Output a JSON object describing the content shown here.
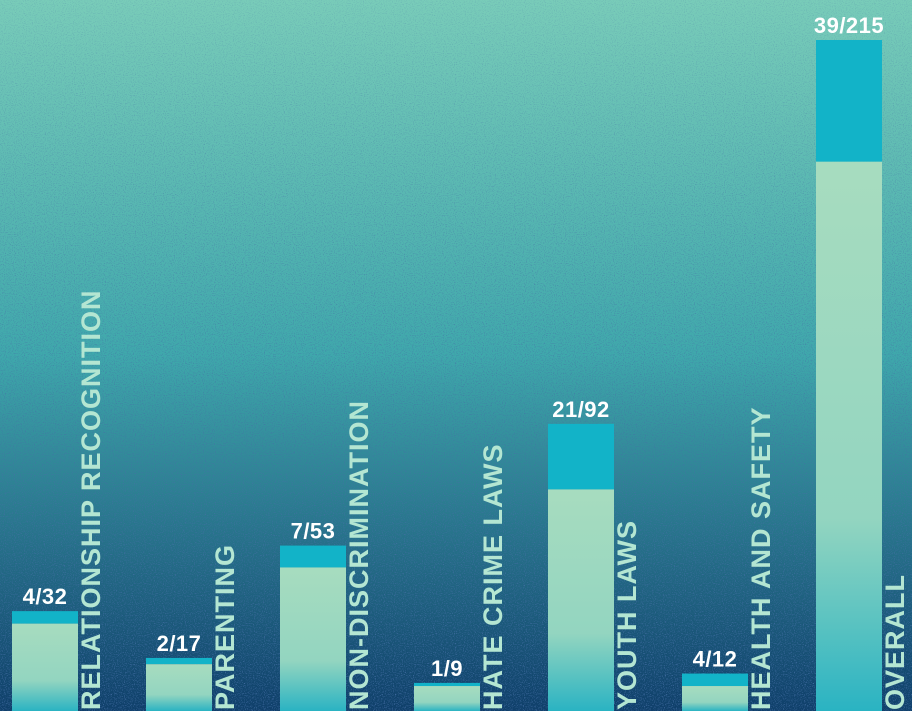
{
  "chart_data": {
    "type": "bar",
    "stacked": true,
    "categories": [
      "RELATIONSHIP RECOGNITION",
      "PARENTING",
      "NON-DISCRIMINATION",
      "HATE CRIME LAWS",
      "YOUTH LAWS",
      "HEALTH AND SAFETY",
      "OVERALL"
    ],
    "labels": [
      "4/32",
      "2/17",
      "7/53",
      "1/9",
      "21/92",
      "4/12",
      "39/215"
    ],
    "series": [
      {
        "values": [
          28,
          15,
          46,
          8,
          71,
          8,
          176
        ]
      },
      {
        "values": [
          4,
          2,
          7,
          1,
          21,
          4,
          39
        ]
      }
    ],
    "totals": [
      32,
      17,
      53,
      9,
      92,
      12,
      215
    ],
    "title": "",
    "xlabel": "",
    "ylabel": "",
    "ylim": [
      0,
      230
    ],
    "grid": false,
    "legend": "none"
  },
  "colors": {
    "background_top": "#79ccb9",
    "background_mid": "#3fa8ac",
    "background_bottom": "#0f3f6a",
    "bar_light_top": "#a7dcbf",
    "bar_light_bottom": "#2ab3c2",
    "bar_cap": "#12b3c8",
    "category_label": "#b4e6d2",
    "value_label": "#ffffff"
  }
}
